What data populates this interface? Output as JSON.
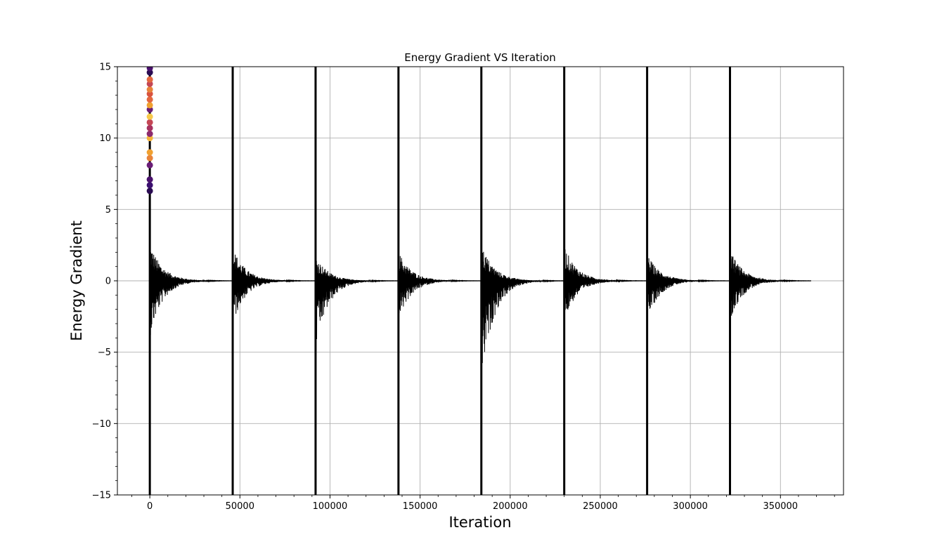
{
  "chart_data": {
    "type": "line",
    "title": "Energy Gradient VS Iteration",
    "xlabel": "Iteration",
    "ylabel": "Energy Gradient",
    "xlim": [
      -18000,
      385000
    ],
    "ylim": [
      -15,
      15
    ],
    "grid": true,
    "x_ticks": [
      0,
      50000,
      100000,
      150000,
      200000,
      250000,
      300000,
      350000
    ],
    "x_tick_labels": [
      "0",
      "50000",
      "100000",
      "150000",
      "200000",
      "250000",
      "300000",
      "350000"
    ],
    "y_ticks": [
      -15,
      -10,
      -5,
      0,
      5,
      10,
      15
    ],
    "y_tick_labels": [
      "−15",
      "−10",
      "−5",
      "0",
      "5",
      "10",
      "15"
    ],
    "cycle_starts": [
      0,
      46000,
      92000,
      138000,
      184000,
      230000,
      276000,
      322000
    ],
    "cycle_length": 46000,
    "series": [
      {
        "type": "line",
        "color": "#000000",
        "description": "gradient oscillations decaying to 0 within each cycle, with spikes spanning the full y-range at each cycle start",
        "envelope_peaks": [
          {
            "x": 0,
            "upper": 2.7,
            "lower": -4.0
          },
          {
            "x": 46000,
            "upper": 2.4,
            "lower": -3.1
          },
          {
            "x": 92000,
            "upper": 1.8,
            "lower": -4.8
          },
          {
            "x": 138000,
            "upper": 2.1,
            "lower": -2.8
          },
          {
            "x": 184000,
            "upper": 2.6,
            "lower": -7.0
          },
          {
            "x": 230000,
            "upper": 2.5,
            "lower": -2.9
          },
          {
            "x": 276000,
            "upper": 1.9,
            "lower": -2.8
          },
          {
            "x": 322000,
            "upper": 2.2,
            "lower": -2.9
          }
        ],
        "end_x": 367000
      },
      {
        "type": "scatter",
        "colormap": "inferno",
        "points": [
          {
            "x": 0,
            "y": 6.3,
            "color": "#2a0b52"
          },
          {
            "x": 0,
            "y": 6.7,
            "color": "#3b0f6f"
          },
          {
            "x": 0,
            "y": 7.1,
            "color": "#4a116d"
          },
          {
            "x": 0,
            "y": 8.1,
            "color": "#6a1d77"
          },
          {
            "x": 0,
            "y": 8.6,
            "color": "#e8833a"
          },
          {
            "x": 0,
            "y": 9.0,
            "color": "#f0a030"
          },
          {
            "x": 0,
            "y": 10.0,
            "color": "#f5b43a"
          },
          {
            "x": 0,
            "y": 10.3,
            "color": "#8c2a6e"
          },
          {
            "x": 0,
            "y": 10.7,
            "color": "#a7325f"
          },
          {
            "x": 0,
            "y": 11.1,
            "color": "#c44755"
          },
          {
            "x": 0,
            "y": 11.5,
            "color": "#f7c94b"
          },
          {
            "x": 0,
            "y": 12.0,
            "color": "#6a1d77"
          },
          {
            "x": 0,
            "y": 12.3,
            "color": "#f0a030"
          },
          {
            "x": 0,
            "y": 12.7,
            "color": "#e3673f"
          },
          {
            "x": 0,
            "y": 13.1,
            "color": "#d9533f"
          },
          {
            "x": 0,
            "y": 13.4,
            "color": "#e8833a"
          },
          {
            "x": 0,
            "y": 13.8,
            "color": "#c44755"
          },
          {
            "x": 0,
            "y": 14.1,
            "color": "#e3673f"
          },
          {
            "x": 0,
            "y": 14.6,
            "color": "#2a0b52"
          },
          {
            "x": 0,
            "y": 14.9,
            "color": "#4a116d"
          }
        ]
      }
    ]
  },
  "colors": {
    "grid": "#b0b0b0",
    "line": "#000000",
    "axes": "#000000",
    "background": "#ffffff"
  }
}
